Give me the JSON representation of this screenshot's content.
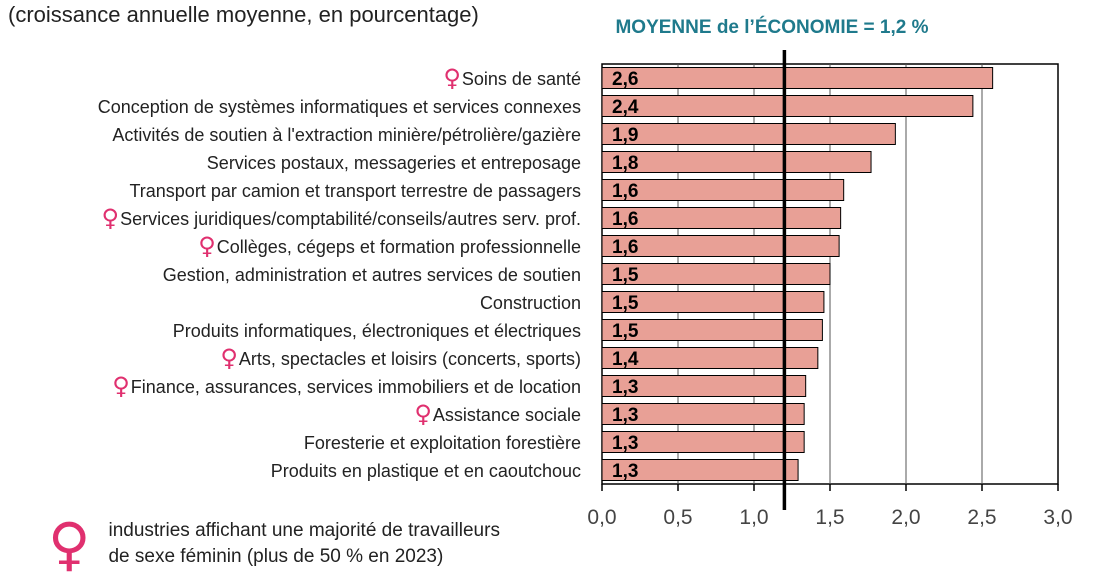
{
  "subtitle": "(croissance annuelle moyenne, en pourcentage)",
  "colors": {
    "bar": "#e8a096",
    "avg_title": "#1f7a8c",
    "female": "#e0306f",
    "axis": "#000000"
  },
  "legend": {
    "icon": "female-symbol-icon",
    "symbol": "♀",
    "line1": "industries affichant une majorité de travailleurs",
    "line2": "de sexe féminin (plus de 50 % en 2023)"
  },
  "chart_data": {
    "type": "bar",
    "orientation": "horizontal",
    "reference_line": {
      "label": "MOYENNE de l’ÉCONOMIE = 1,2 %",
      "value": 1.2
    },
    "xlim": [
      0,
      3.0
    ],
    "xticks": [
      "0,0",
      "0,5",
      "1,0",
      "1,5",
      "2,0",
      "2,5",
      "3,0"
    ],
    "xtick_values": [
      0,
      0.5,
      1.0,
      1.5,
      2.0,
      2.5,
      3.0
    ],
    "grid": true,
    "categories": [
      "Soins de santé",
      "Conception de systèmes informatiques et services connexes",
      "Activités de soutien à l'extraction minière/pétrolière/gazière",
      "Services postaux, messageries et entreposage",
      "Transport par camion et transport terrestre de passagers",
      "Services juridiques/comptabilité/conseils/autres serv. prof.",
      "Collèges, cégeps et formation professionnelle",
      "Gestion, administration et autres services de soutien",
      "Construction",
      "Produits informatiques, électroniques et électriques",
      "Arts, spectacles et loisirs (concerts, sports)",
      "Finance, assurances, services immobiliers et de location",
      "Assistance sociale",
      "Foresterie et exploitation forestière",
      "Produits en plastique et en caoutchouc"
    ],
    "values": [
      2.57,
      2.44,
      1.93,
      1.77,
      1.59,
      1.57,
      1.56,
      1.5,
      1.46,
      1.45,
      1.42,
      1.34,
      1.33,
      1.33,
      1.29
    ],
    "labels": [
      "2,6",
      "2,4",
      "1,9",
      "1,8",
      "1,6",
      "1,6",
      "1,6",
      "1,5",
      "1,5",
      "1,5",
      "1,4",
      "1,3",
      "1,3",
      "1,3",
      "1,3"
    ],
    "female_majority": [
      true,
      false,
      false,
      false,
      false,
      true,
      true,
      false,
      false,
      false,
      true,
      true,
      true,
      false,
      false
    ]
  }
}
